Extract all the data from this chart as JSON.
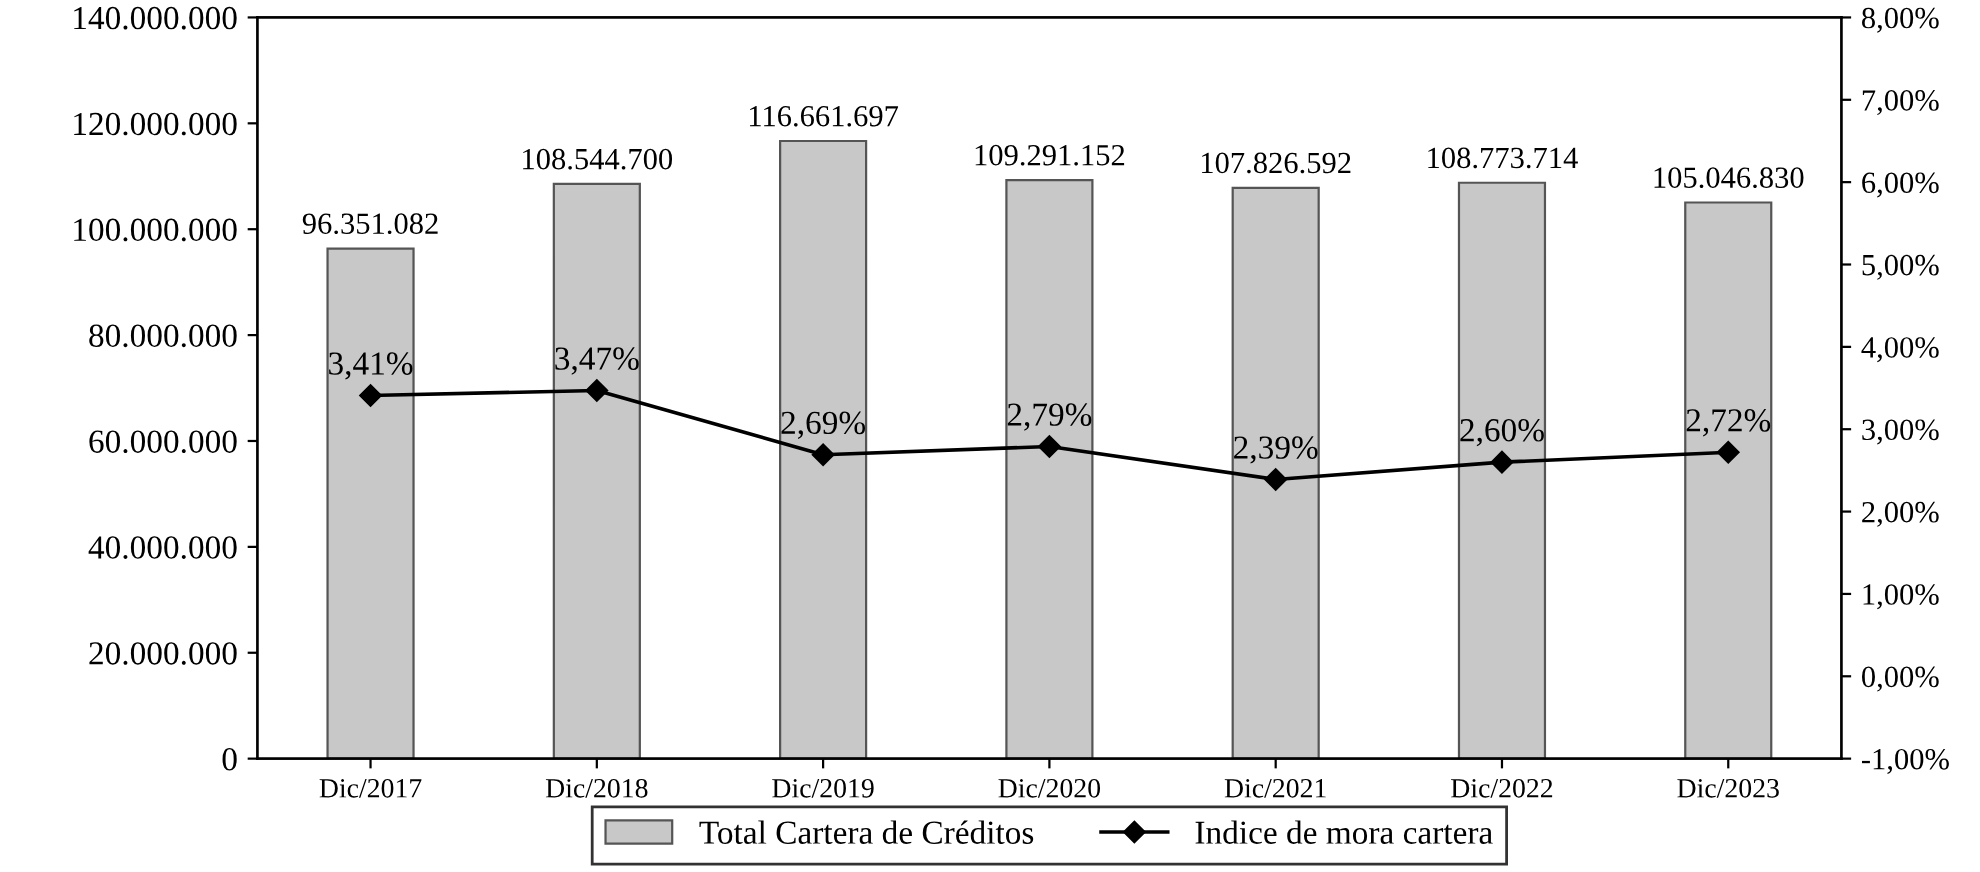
{
  "chart_data": {
    "type": "bar",
    "categories": [
      "Dic/2017",
      "Dic/2018",
      "Dic/2019",
      "Dic/2020",
      "Dic/2021",
      "Dic/2022",
      "Dic/2023"
    ],
    "series": [
      {
        "name": "Total Cartera de Créditos",
        "color": "#c8c8c8",
        "values": [
          96351082,
          108544700,
          116661697,
          109291152,
          107826592,
          108773714,
          105046830
        ],
        "value_labels": [
          "96.351.082",
          "108.544.700",
          "116.661.697",
          "109.291.152",
          "107.826.592",
          "108.773.714",
          "105.046.830"
        ]
      },
      {
        "name": "Indice de mora cartera",
        "type": "line",
        "axis": "y2",
        "color": "#000000",
        "marker": "diamond",
        "values": [
          3.41,
          3.47,
          2.69,
          2.79,
          2.39,
          2.6,
          2.72
        ],
        "value_labels": [
          "3,41%",
          "3,47%",
          "2,69%",
          "2,79%",
          "2,39%",
          "2,60%",
          "2,72%"
        ]
      }
    ],
    "ylim": [
      0,
      140000000
    ],
    "yticks": [
      {
        "value": 0,
        "label": "0"
      },
      {
        "value": 20000000,
        "label": "20.000.000"
      },
      {
        "value": 40000000,
        "label": "40.000.000"
      },
      {
        "value": 60000000,
        "label": "60.000.000"
      },
      {
        "value": 80000000,
        "label": "80.000.000"
      },
      {
        "value": 100000000,
        "label": "100.000.000"
      },
      {
        "value": 120000000,
        "label": "120.000.000"
      },
      {
        "value": 140000000,
        "label": "140.000.000"
      }
    ],
    "y2lim": [
      -1,
      8
    ],
    "y2ticks": [
      {
        "value": -1,
        "label": "-1,00%"
      },
      {
        "value": 0,
        "label": "0,00%"
      },
      {
        "value": 1,
        "label": "1,00%"
      },
      {
        "value": 2,
        "label": "2,00%"
      },
      {
        "value": 3,
        "label": "3,00%"
      },
      {
        "value": 4,
        "label": "4,00%"
      },
      {
        "value": 5,
        "label": "5,00%"
      },
      {
        "value": 6,
        "label": "6,00%"
      },
      {
        "value": 7,
        "label": "7,00%"
      },
      {
        "value": 8,
        "label": "8,00%"
      }
    ],
    "grid": false,
    "legend": "bottom"
  }
}
